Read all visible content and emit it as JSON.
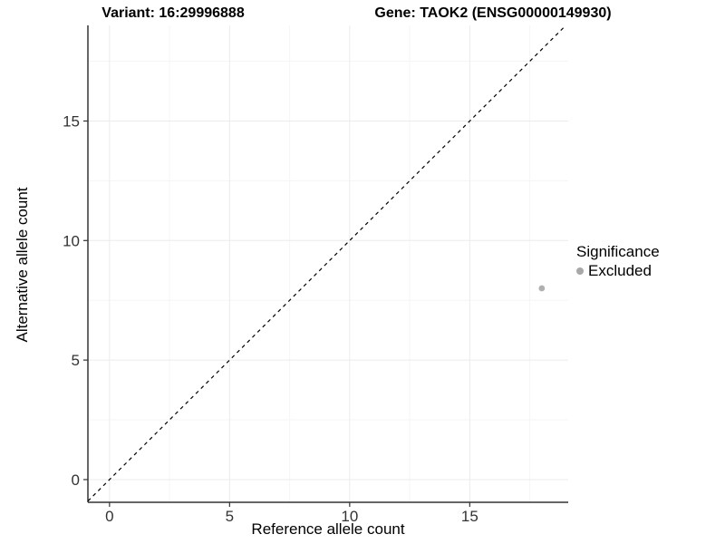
{
  "titles": {
    "variant": "Variant: 16:29996888",
    "gene": "Gene: TAOK2 (ENSG00000149930)"
  },
  "chart_data": {
    "type": "scatter",
    "xlabel": "Reference allele count",
    "ylabel": "Alternative allele count",
    "x_ticks": [
      0,
      5,
      10,
      15
    ],
    "y_ticks": [
      0,
      5,
      10,
      15
    ],
    "x_minor_ticks": [
      2.5,
      7.5,
      12.5,
      17.5
    ],
    "y_minor_ticks": [
      2.5,
      7.5,
      12.5,
      17.5
    ],
    "xlim": [
      -0.9,
      19.1
    ],
    "ylim": [
      -0.95,
      19.0
    ],
    "grid": true,
    "legend_position": "right",
    "series": [
      {
        "name": "Excluded",
        "points": [
          {
            "x": 18,
            "y": 8
          }
        ],
        "color": "#b0b0b0"
      }
    ],
    "identity_line": {
      "style": "dashed",
      "from": -0.9,
      "to": 19.0,
      "color": "#000000"
    },
    "colors": {
      "grid_major": "#ebebeb",
      "grid_minor": "#f5f5f5",
      "axis_line": "#333333",
      "tick_text": "#333333",
      "point_excluded": "#b0b0b0"
    }
  },
  "legend": {
    "title": "Significance",
    "items": [
      {
        "label": "Excluded",
        "color": "#a8a8a8"
      }
    ]
  }
}
